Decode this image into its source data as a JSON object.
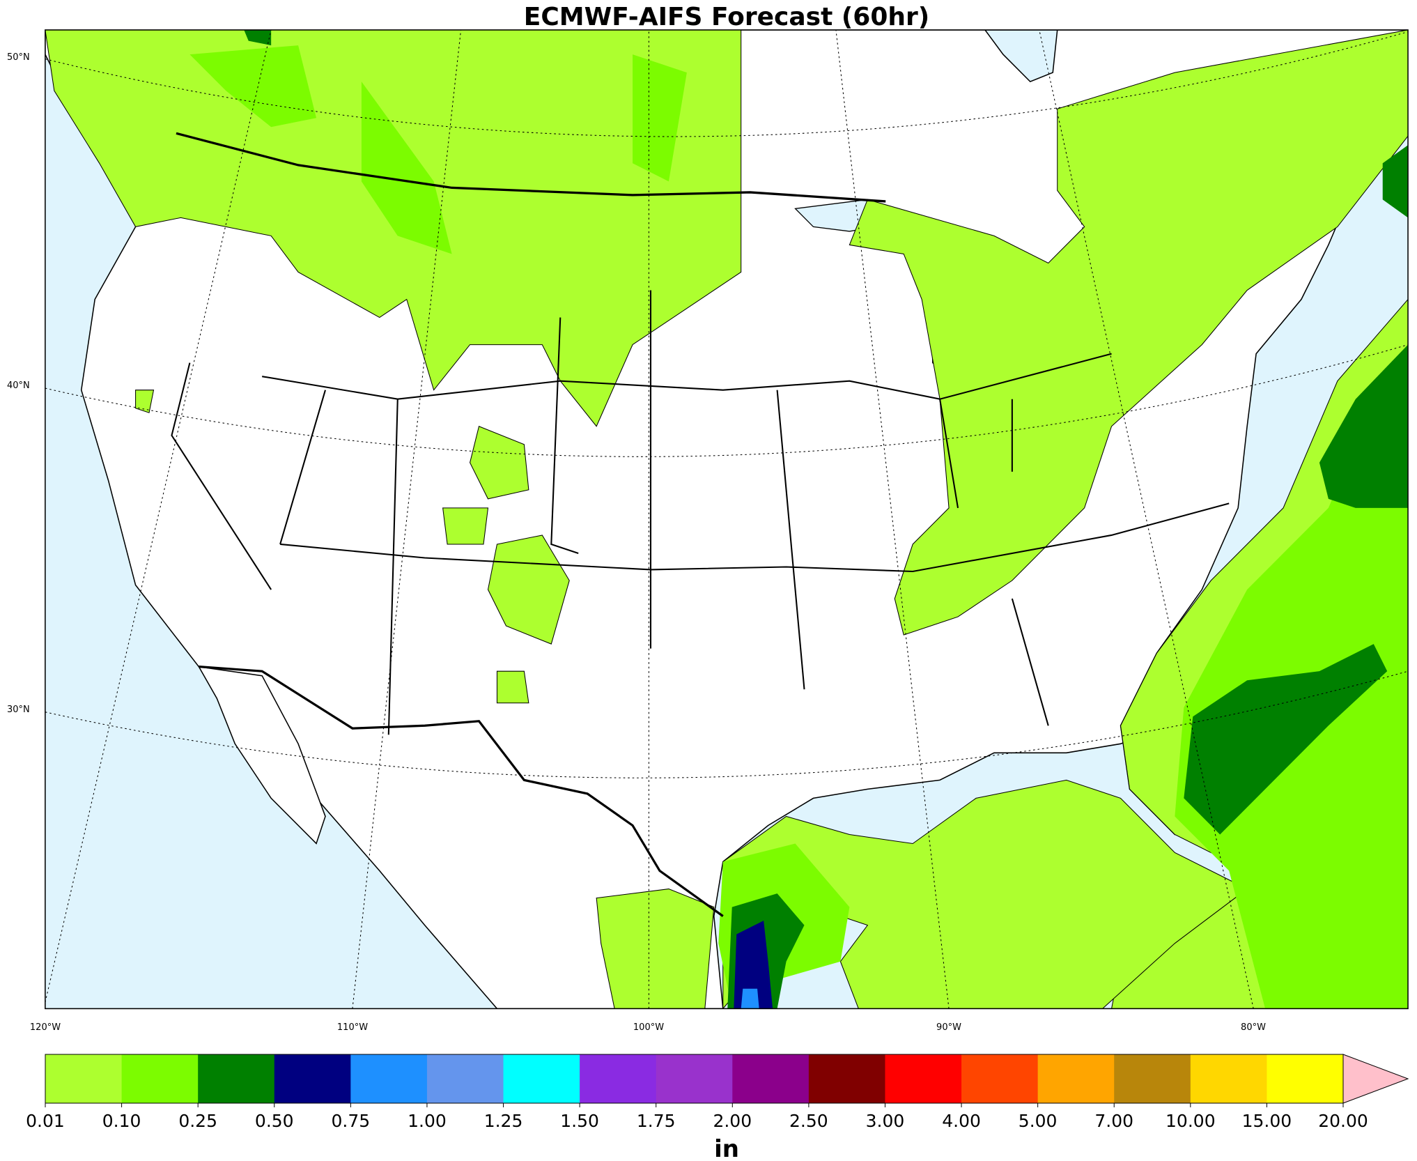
{
  "title": "ECMWF-AIFS Forecast (60hr)",
  "latitude_labels": [
    "50°N",
    "40°N",
    "30°N"
  ],
  "longitude_labels": [
    "120°W",
    "110°W",
    "100°W",
    "90°W",
    "80°W"
  ],
  "colorbar": {
    "label": "in",
    "levels": [
      "0.01",
      "0.10",
      "0.25",
      "0.50",
      "0.75",
      "1.00",
      "1.25",
      "1.50",
      "1.75",
      "2.00",
      "2.50",
      "3.00",
      "4.00",
      "5.00",
      "7.00",
      "10.00",
      "15.00",
      "20.00"
    ],
    "colors": [
      "#adff2f",
      "#7cfc00",
      "#008000",
      "#000080",
      "#1e90ff",
      "#6495ed",
      "#00ffff",
      "#8a2be2",
      "#9932cc",
      "#8b008b",
      "#800000",
      "#ff0000",
      "#ff4500",
      "#ffa500",
      "#b8860b",
      "#ffd700",
      "#ffff00"
    ],
    "extend_color": "#ffc0cb"
  }
}
